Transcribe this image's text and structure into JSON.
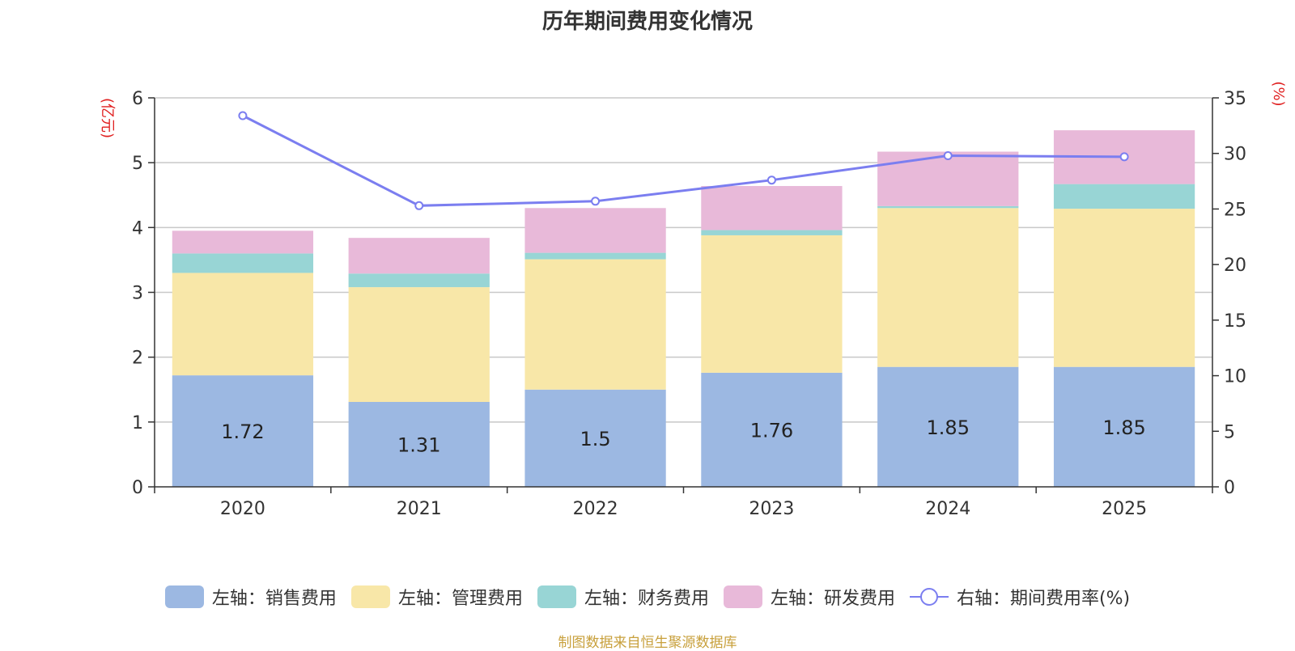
{
  "chart_data": {
    "type": "bar",
    "stacked": true,
    "title": "历年期间费用变化情况",
    "categories": [
      "2020",
      "2021",
      "2022",
      "2023",
      "2024",
      "2025"
    ],
    "left_axis": {
      "label": "(亿元)",
      "ylim": [
        0,
        6
      ],
      "ticks": [
        "0",
        "1",
        "2",
        "3",
        "4",
        "5",
        "6"
      ]
    },
    "right_axis": {
      "label": "(%)",
      "ylim": [
        0,
        35
      ],
      "ticks": [
        "0",
        "5",
        "10",
        "15",
        "20",
        "25",
        "30",
        "35"
      ]
    },
    "series": [
      {
        "name": "左轴：销售费用",
        "axis": "left",
        "type": "bar",
        "color": "#9cb8e2",
        "values": [
          1.72,
          1.31,
          1.5,
          1.76,
          1.85,
          1.85
        ],
        "data_labels": [
          "1.72",
          "1.31",
          "1.5",
          "1.76",
          "1.85",
          "1.85"
        ]
      },
      {
        "name": "左轴：管理费用",
        "axis": "left",
        "type": "bar",
        "color": "#f8e7a8",
        "values": [
          1.58,
          1.77,
          2.01,
          2.12,
          2.45,
          2.44
        ]
      },
      {
        "name": "左轴：财务费用",
        "axis": "left",
        "type": "bar",
        "color": "#98d5d5",
        "values": [
          0.3,
          0.21,
          0.1,
          0.08,
          0.03,
          0.38
        ]
      },
      {
        "name": "左轴：研发费用",
        "axis": "left",
        "type": "bar",
        "color": "#e8b9d9",
        "values": [
          0.35,
          0.55,
          0.69,
          0.68,
          0.84,
          0.83
        ]
      },
      {
        "name": "右轴：期间费用率(%)",
        "axis": "right",
        "type": "line",
        "color": "#7b7ef0",
        "values": [
          33.4,
          25.3,
          25.7,
          27.6,
          29.8,
          29.7
        ]
      }
    ],
    "legend_position": "bottom",
    "grid": true
  },
  "footer": {
    "source": "制图数据来自恒生聚源数据库"
  }
}
